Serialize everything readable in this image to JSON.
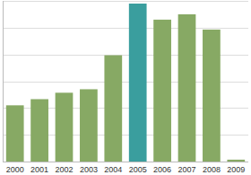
{
  "chart_data": {
    "type": "bar",
    "categories": [
      "2000",
      "2001",
      "2002",
      "2003",
      "2004",
      "2005",
      "2006",
      "2007",
      "2008",
      "2009"
    ],
    "values": [
      2.1,
      2.33,
      2.57,
      2.7,
      3.97,
      5.9,
      5.3,
      5.5,
      4.93,
      0.07
    ],
    "colors": [
      "#87a964",
      "#87a964",
      "#87a964",
      "#87a964",
      "#87a964",
      "#3a9e9e",
      "#87a964",
      "#87a964",
      "#87a964",
      "#87a964"
    ],
    "ylim": [
      0,
      6
    ],
    "yticks": [
      0,
      1,
      2,
      3,
      4,
      5,
      6
    ],
    "grid": true,
    "tick_labels": "x"
  }
}
